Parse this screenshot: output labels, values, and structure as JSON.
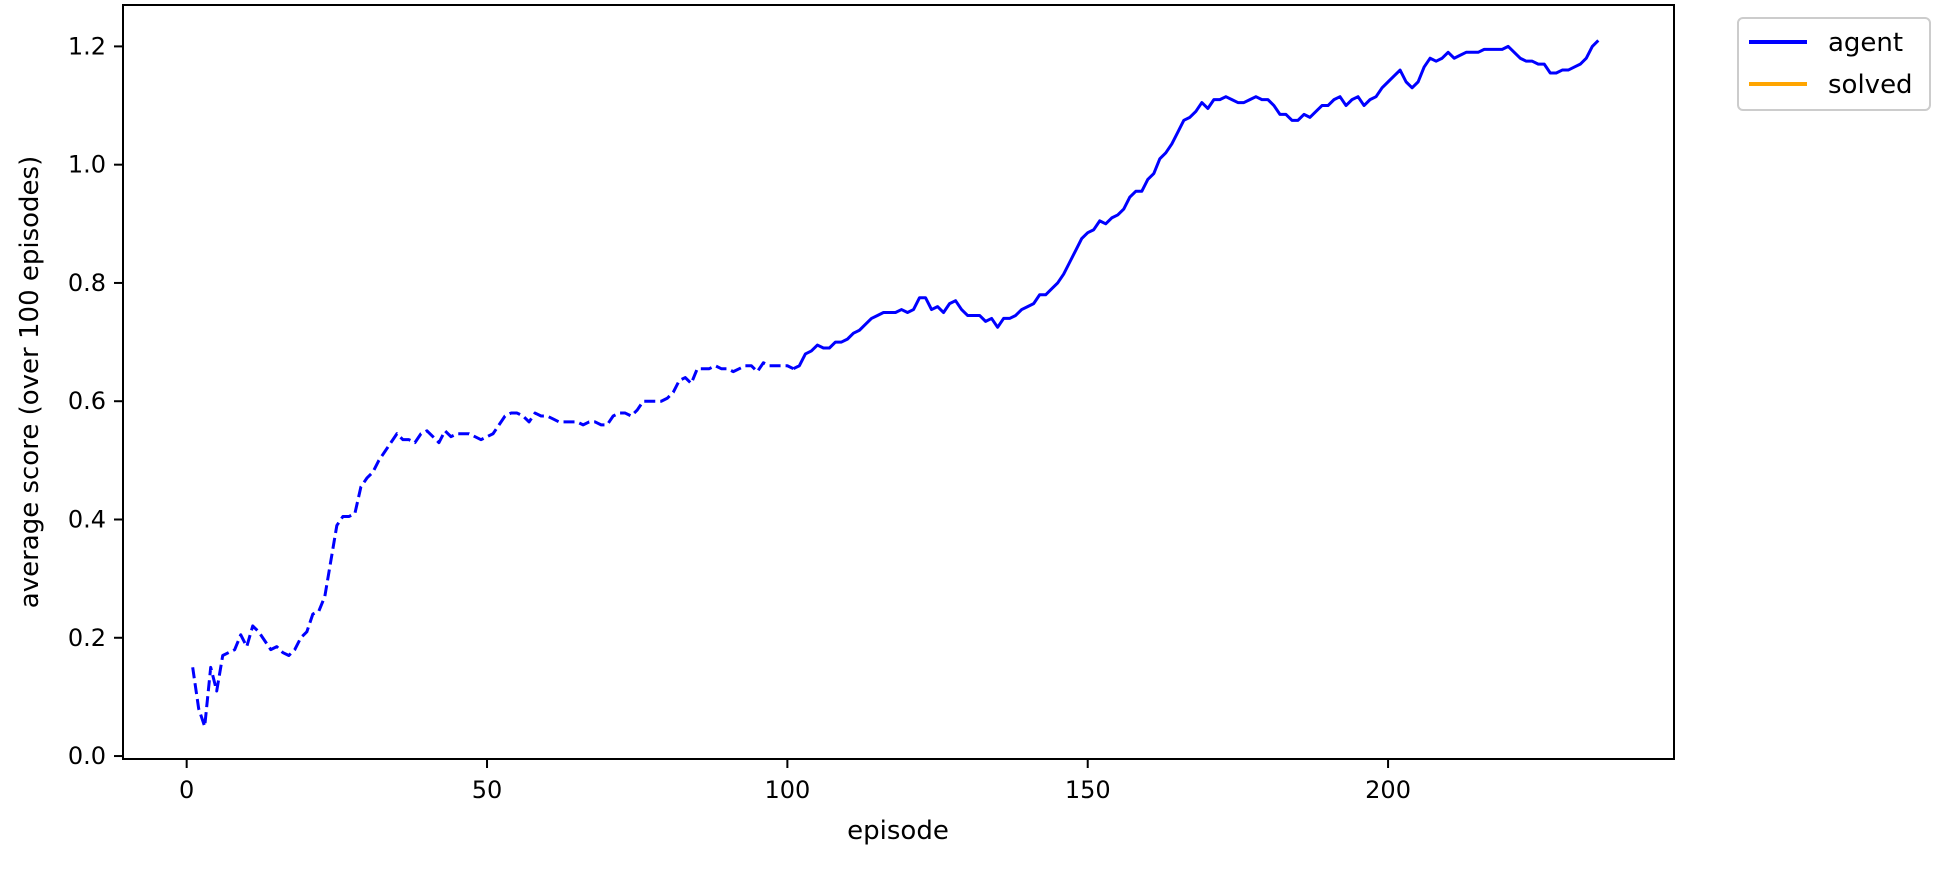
{
  "chart_data": {
    "type": "line",
    "title": "",
    "xlabel": "episode",
    "ylabel": "average score (over 100 episodes)",
    "xlim": [
      -10.6,
      247.6
    ],
    "ylim": [
      -0.005,
      1.27
    ],
    "xticks": [
      0,
      50,
      100,
      150,
      200
    ],
    "yticks": [
      0.0,
      0.2,
      0.4,
      0.6,
      0.8,
      1.0,
      1.2
    ],
    "xtick_labels": [
      "0",
      "50",
      "100",
      "150",
      "200"
    ],
    "ytick_labels": [
      "0.0",
      "0.2",
      "0.4",
      "0.6",
      "0.8",
      "1.0",
      "1.2"
    ],
    "grid": false,
    "legend": {
      "location": "outside-top-right",
      "entries": [
        {
          "label": "agent",
          "color": "#0000ff"
        },
        {
          "label": "solved",
          "color": "#ffa500"
        }
      ]
    },
    "series": [
      {
        "name": "agent",
        "color": "#0000ff",
        "points": [
          [
            1,
            0.15
          ],
          [
            2,
            0.08
          ],
          [
            3,
            0.05
          ],
          [
            4,
            0.15
          ],
          [
            5,
            0.11
          ],
          [
            6,
            0.17
          ],
          [
            7,
            0.175
          ],
          [
            8,
            0.18
          ],
          [
            9,
            0.205
          ],
          [
            10,
            0.185
          ],
          [
            11,
            0.22
          ],
          [
            12,
            0.21
          ],
          [
            13,
            0.195
          ],
          [
            14,
            0.18
          ],
          [
            15,
            0.185
          ],
          [
            16,
            0.175
          ],
          [
            17,
            0.17
          ],
          [
            18,
            0.18
          ],
          [
            19,
            0.2
          ],
          [
            20,
            0.21
          ],
          [
            21,
            0.24
          ],
          [
            22,
            0.245
          ],
          [
            23,
            0.27
          ],
          [
            24,
            0.33
          ],
          [
            25,
            0.39
          ],
          [
            26,
            0.405
          ],
          [
            27,
            0.405
          ],
          [
            28,
            0.41
          ],
          [
            29,
            0.455
          ],
          [
            30,
            0.47
          ],
          [
            31,
            0.48
          ],
          [
            32,
            0.5
          ],
          [
            33,
            0.515
          ],
          [
            34,
            0.53
          ],
          [
            35,
            0.545
          ],
          [
            36,
            0.535
          ],
          [
            37,
            0.535
          ],
          [
            38,
            0.53
          ],
          [
            39,
            0.545
          ],
          [
            40,
            0.55
          ],
          [
            41,
            0.54
          ],
          [
            42,
            0.53
          ],
          [
            43,
            0.55
          ],
          [
            44,
            0.54
          ],
          [
            45,
            0.545
          ],
          [
            46,
            0.545
          ],
          [
            47,
            0.545
          ],
          [
            48,
            0.54
          ],
          [
            49,
            0.535
          ],
          [
            50,
            0.54
          ],
          [
            51,
            0.545
          ],
          [
            52,
            0.56
          ],
          [
            53,
            0.575
          ],
          [
            54,
            0.58
          ],
          [
            55,
            0.58
          ],
          [
            56,
            0.575
          ],
          [
            57,
            0.565
          ],
          [
            58,
            0.58
          ],
          [
            59,
            0.575
          ],
          [
            60,
            0.575
          ],
          [
            61,
            0.57
          ],
          [
            62,
            0.565
          ],
          [
            63,
            0.565
          ],
          [
            64,
            0.565
          ],
          [
            65,
            0.565
          ],
          [
            66,
            0.56
          ],
          [
            67,
            0.565
          ],
          [
            68,
            0.565
          ],
          [
            69,
            0.56
          ],
          [
            70,
            0.56
          ],
          [
            71,
            0.575
          ],
          [
            72,
            0.58
          ],
          [
            73,
            0.58
          ],
          [
            74,
            0.575
          ],
          [
            75,
            0.585
          ],
          [
            76,
            0.6
          ],
          [
            77,
            0.6
          ],
          [
            78,
            0.6
          ],
          [
            79,
            0.6
          ],
          [
            80,
            0.605
          ],
          [
            81,
            0.615
          ],
          [
            82,
            0.635
          ],
          [
            83,
            0.64
          ],
          [
            84,
            0.63
          ],
          [
            85,
            0.655
          ],
          [
            86,
            0.655
          ],
          [
            87,
            0.655
          ],
          [
            88,
            0.66
          ],
          [
            89,
            0.655
          ],
          [
            90,
            0.655
          ],
          [
            91,
            0.65
          ],
          [
            92,
            0.655
          ],
          [
            93,
            0.66
          ],
          [
            94,
            0.66
          ],
          [
            95,
            0.65
          ],
          [
            96,
            0.665
          ],
          [
            97,
            0.66
          ],
          [
            98,
            0.66
          ],
          [
            99,
            0.66
          ],
          [
            100,
            0.66
          ],
          [
            101,
            0.655
          ],
          [
            102,
            0.66
          ],
          [
            103,
            0.68
          ],
          [
            104,
            0.685
          ],
          [
            105,
            0.695
          ],
          [
            106,
            0.69
          ],
          [
            107,
            0.69
          ],
          [
            108,
            0.7
          ],
          [
            109,
            0.7
          ],
          [
            110,
            0.705
          ],
          [
            111,
            0.715
          ],
          [
            112,
            0.72
          ],
          [
            113,
            0.73
          ],
          [
            114,
            0.74
          ],
          [
            115,
            0.745
          ],
          [
            116,
            0.75
          ],
          [
            117,
            0.75
          ],
          [
            118,
            0.75
          ],
          [
            119,
            0.755
          ],
          [
            120,
            0.75
          ],
          [
            121,
            0.755
          ],
          [
            122,
            0.775
          ],
          [
            123,
            0.775
          ],
          [
            124,
            0.755
          ],
          [
            125,
            0.76
          ],
          [
            126,
            0.75
          ],
          [
            127,
            0.765
          ],
          [
            128,
            0.77
          ],
          [
            129,
            0.755
          ],
          [
            130,
            0.745
          ],
          [
            131,
            0.745
          ],
          [
            132,
            0.745
          ],
          [
            133,
            0.735
          ],
          [
            134,
            0.74
          ],
          [
            135,
            0.725
          ],
          [
            136,
            0.74
          ],
          [
            137,
            0.74
          ],
          [
            138,
            0.745
          ],
          [
            139,
            0.755
          ],
          [
            140,
            0.76
          ],
          [
            141,
            0.765
          ],
          [
            142,
            0.78
          ],
          [
            143,
            0.78
          ],
          [
            144,
            0.79
          ],
          [
            145,
            0.8
          ],
          [
            146,
            0.815
          ],
          [
            147,
            0.835
          ],
          [
            148,
            0.855
          ],
          [
            149,
            0.875
          ],
          [
            150,
            0.885
          ],
          [
            151,
            0.89
          ],
          [
            152,
            0.905
          ],
          [
            153,
            0.9
          ],
          [
            154,
            0.91
          ],
          [
            155,
            0.915
          ],
          [
            156,
            0.925
          ],
          [
            157,
            0.945
          ],
          [
            158,
            0.955
          ],
          [
            159,
            0.955
          ],
          [
            160,
            0.975
          ],
          [
            161,
            0.985
          ],
          [
            162,
            1.01
          ],
          [
            163,
            1.02
          ],
          [
            164,
            1.035
          ],
          [
            165,
            1.055
          ],
          [
            166,
            1.075
          ],
          [
            167,
            1.08
          ],
          [
            168,
            1.09
          ],
          [
            169,
            1.105
          ],
          [
            170,
            1.095
          ],
          [
            171,
            1.11
          ],
          [
            172,
            1.11
          ],
          [
            173,
            1.115
          ],
          [
            174,
            1.11
          ],
          [
            175,
            1.105
          ],
          [
            176,
            1.105
          ],
          [
            177,
            1.11
          ],
          [
            178,
            1.115
          ],
          [
            179,
            1.11
          ],
          [
            180,
            1.11
          ],
          [
            181,
            1.1
          ],
          [
            182,
            1.085
          ],
          [
            183,
            1.085
          ],
          [
            184,
            1.075
          ],
          [
            185,
            1.075
          ],
          [
            186,
            1.085
          ],
          [
            187,
            1.08
          ],
          [
            188,
            1.09
          ],
          [
            189,
            1.1
          ],
          [
            190,
            1.1
          ],
          [
            191,
            1.11
          ],
          [
            192,
            1.115
          ],
          [
            193,
            1.1
          ],
          [
            194,
            1.11
          ],
          [
            195,
            1.115
          ],
          [
            196,
            1.1
          ],
          [
            197,
            1.11
          ],
          [
            198,
            1.115
          ],
          [
            199,
            1.13
          ],
          [
            200,
            1.14
          ],
          [
            201,
            1.15
          ],
          [
            202,
            1.16
          ],
          [
            203,
            1.14
          ],
          [
            204,
            1.13
          ],
          [
            205,
            1.14
          ],
          [
            206,
            1.165
          ],
          [
            207,
            1.18
          ],
          [
            208,
            1.175
          ],
          [
            209,
            1.18
          ],
          [
            210,
            1.19
          ],
          [
            211,
            1.18
          ],
          [
            212,
            1.185
          ],
          [
            213,
            1.19
          ],
          [
            214,
            1.19
          ],
          [
            215,
            1.19
          ],
          [
            216,
            1.195
          ],
          [
            217,
            1.195
          ],
          [
            218,
            1.195
          ],
          [
            219,
            1.195
          ],
          [
            220,
            1.2
          ],
          [
            221,
            1.19
          ],
          [
            222,
            1.18
          ],
          [
            223,
            1.175
          ],
          [
            224,
            1.175
          ],
          [
            225,
            1.17
          ],
          [
            226,
            1.17
          ],
          [
            227,
            1.155
          ],
          [
            228,
            1.155
          ],
          [
            229,
            1.16
          ],
          [
            230,
            1.16
          ],
          [
            231,
            1.165
          ],
          [
            232,
            1.17
          ],
          [
            233,
            1.18
          ],
          [
            234,
            1.2
          ],
          [
            235,
            1.21
          ]
        ]
      },
      {
        "name": "solved",
        "color": "#ffa500",
        "points": []
      }
    ]
  }
}
